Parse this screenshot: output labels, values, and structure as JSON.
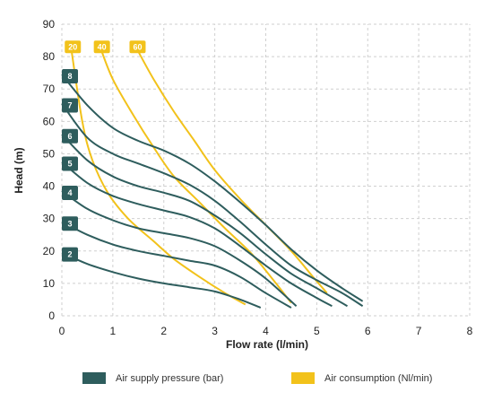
{
  "chart_data": {
    "type": "line",
    "xlabel": "Flow rate (l/min)",
    "ylabel": "Head (m)",
    "xlim": [
      0,
      8
    ],
    "ylim": [
      0,
      90
    ],
    "xticks": [
      "0",
      "1",
      "2",
      "3",
      "4",
      "5",
      "6",
      "7",
      "8"
    ],
    "yticks": [
      "0",
      "10",
      "20",
      "30",
      "40",
      "50",
      "60",
      "70",
      "80",
      "90"
    ],
    "grid": "dashed",
    "legend_position": "bottom",
    "legend": [
      {
        "label": "Air supply pressure (bar)",
        "color": "#2e5d5d"
      },
      {
        "label": "Air consumption (Nl/min)",
        "color": "#f2c21b"
      }
    ],
    "pressure_series": [
      {
        "name": "2",
        "color": "#2e5d5d",
        "points": [
          [
            0,
            19.5
          ],
          [
            0.5,
            16
          ],
          [
            1,
            13.5
          ],
          [
            1.5,
            11.5
          ],
          [
            2,
            10
          ],
          [
            2.5,
            8.8
          ],
          [
            3,
            7.5
          ],
          [
            3.5,
            5
          ],
          [
            3.9,
            2.5
          ]
        ]
      },
      {
        "name": "3",
        "color": "#2e5d5d",
        "points": [
          [
            0,
            29
          ],
          [
            0.5,
            25
          ],
          [
            1,
            22
          ],
          [
            1.5,
            20
          ],
          [
            2,
            18.5
          ],
          [
            2.5,
            17
          ],
          [
            3,
            15.5
          ],
          [
            3.5,
            12
          ],
          [
            4,
            7
          ],
          [
            4.5,
            2.5
          ]
        ]
      },
      {
        "name": "4",
        "color": "#2e5d5d",
        "points": [
          [
            0,
            38.5
          ],
          [
            0.5,
            33
          ],
          [
            1,
            29.5
          ],
          [
            1.5,
            27
          ],
          [
            2,
            25.5
          ],
          [
            2.5,
            24
          ],
          [
            3,
            21.5
          ],
          [
            3.5,
            17
          ],
          [
            4,
            11.5
          ],
          [
            4.6,
            3
          ]
        ]
      },
      {
        "name": "5",
        "color": "#2e5d5d",
        "points": [
          [
            0,
            47.5
          ],
          [
            0.5,
            41
          ],
          [
            1,
            37
          ],
          [
            1.5,
            34.5
          ],
          [
            2,
            32.5
          ],
          [
            2.5,
            30.5
          ],
          [
            3,
            27
          ],
          [
            3.5,
            21.5
          ],
          [
            4,
            15.5
          ],
          [
            4.5,
            10
          ],
          [
            5,
            5.5
          ],
          [
            5.3,
            3
          ]
        ]
      },
      {
        "name": "6",
        "color": "#2e5d5d",
        "points": [
          [
            0,
            56
          ],
          [
            0.5,
            48
          ],
          [
            1,
            43
          ],
          [
            1.5,
            40
          ],
          [
            2,
            38
          ],
          [
            2.5,
            35.5
          ],
          [
            3,
            31
          ],
          [
            3.5,
            25.5
          ],
          [
            4,
            19
          ],
          [
            4.5,
            13
          ],
          [
            5,
            8.5
          ],
          [
            5.6,
            3
          ]
        ]
      },
      {
        "name": "7",
        "color": "#2e5d5d",
        "points": [
          [
            0,
            65.5
          ],
          [
            0.5,
            55
          ],
          [
            1,
            50
          ],
          [
            1.5,
            47
          ],
          [
            2,
            44
          ],
          [
            2.5,
            40.5
          ],
          [
            3,
            35.5
          ],
          [
            3.5,
            29
          ],
          [
            4,
            22
          ],
          [
            4.5,
            15.5
          ],
          [
            5,
            11
          ],
          [
            5.5,
            7
          ],
          [
            5.9,
            3
          ]
        ]
      },
      {
        "name": "8",
        "color": "#2e5d5d",
        "points": [
          [
            0,
            74.5
          ],
          [
            0.5,
            65
          ],
          [
            1,
            58
          ],
          [
            1.5,
            54
          ],
          [
            2,
            51
          ],
          [
            2.5,
            47
          ],
          [
            3,
            41.5
          ],
          [
            3.5,
            35
          ],
          [
            4,
            28
          ],
          [
            4.5,
            20.5
          ],
          [
            5,
            14
          ],
          [
            5.5,
            8.5
          ],
          [
            5.9,
            4.5
          ]
        ]
      }
    ],
    "consumption_series": [
      {
        "name": "20",
        "color": "#f2c21b",
        "points": [
          [
            0.18,
            83
          ],
          [
            0.4,
            60
          ],
          [
            0.6,
            48
          ],
          [
            0.9,
            38
          ],
          [
            1.3,
            30
          ],
          [
            1.8,
            23
          ],
          [
            2.2,
            17.5
          ],
          [
            2.7,
            12
          ],
          [
            3.2,
            7
          ],
          [
            3.6,
            3.5
          ]
        ]
      },
      {
        "name": "40",
        "color": "#f2c21b",
        "points": [
          [
            0.75,
            83
          ],
          [
            1.0,
            73
          ],
          [
            1.4,
            62
          ],
          [
            1.8,
            52
          ],
          [
            2.2,
            43
          ],
          [
            2.7,
            35
          ],
          [
            3.2,
            27
          ],
          [
            3.7,
            19.5
          ],
          [
            4.1,
            12
          ],
          [
            4.5,
            4
          ]
        ]
      },
      {
        "name": "60",
        "color": "#f2c21b",
        "points": [
          [
            1.45,
            83
          ],
          [
            1.8,
            73
          ],
          [
            2.2,
            63
          ],
          [
            2.6,
            54
          ],
          [
            3.0,
            45
          ],
          [
            3.5,
            36
          ],
          [
            4.0,
            28
          ],
          [
            4.5,
            20
          ],
          [
            4.9,
            12.5
          ],
          [
            5.2,
            7
          ]
        ]
      }
    ]
  }
}
